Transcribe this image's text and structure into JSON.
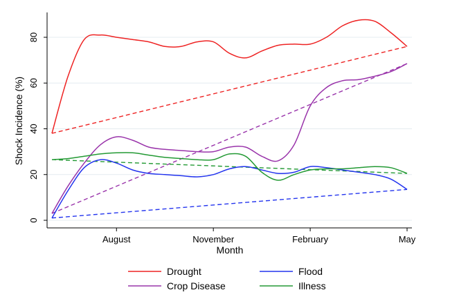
{
  "chart_data": {
    "type": "line",
    "xlabel": "Month",
    "ylabel": "Shock Incidence (%)",
    "x_tick_labels": [
      "August",
      "November",
      "February",
      "May"
    ],
    "x_tick_values": [
      8,
      11,
      14,
      17
    ],
    "y_tick_labels": [
      "0",
      "20",
      "40",
      "60",
      "80"
    ],
    "y_tick_values": [
      0,
      20,
      40,
      60,
      80
    ],
    "xlim": [
      6,
      17
    ],
    "ylim": [
      0,
      90
    ],
    "grid": true,
    "legend_position": "bottom",
    "series": [
      {
        "name": "Drought",
        "color": "#ee2222",
        "x": [
          6,
          6.5,
          7,
          7.5,
          8,
          8.5,
          9,
          9.5,
          10,
          10.5,
          11,
          11.5,
          12,
          12.5,
          13,
          13.5,
          14,
          14.5,
          15,
          15.5,
          16,
          16.5,
          17
        ],
        "values": [
          38,
          63,
          79,
          81,
          80,
          79,
          78,
          76,
          76,
          78,
          78,
          73,
          71,
          74,
          76.5,
          77,
          77,
          80,
          85,
          87.5,
          87,
          82,
          76
        ],
        "trend": [
          38,
          76
        ]
      },
      {
        "name": "Flood",
        "color": "#2233ee",
        "x": [
          6,
          6.5,
          7,
          7.5,
          8,
          8.5,
          9,
          9.5,
          10,
          10.5,
          11,
          11.5,
          12,
          12.5,
          13,
          13.5,
          14,
          14.5,
          15,
          15.5,
          16,
          16.5,
          17
        ],
        "values": [
          1,
          13,
          23,
          26.5,
          25,
          22,
          20.5,
          20,
          19.5,
          19,
          20,
          22.5,
          23.5,
          22,
          20.5,
          21,
          23.5,
          23,
          22,
          21,
          20,
          18,
          13.5
        ],
        "trend": [
          1,
          13.5
        ]
      },
      {
        "name": "Crop Disease",
        "color": "#9933aa",
        "x": [
          6,
          6.5,
          7,
          7.5,
          8,
          8.5,
          9,
          9.5,
          10,
          10.5,
          11,
          11.5,
          12,
          12.5,
          13,
          13.5,
          14,
          14.5,
          15,
          15.5,
          16,
          16.5,
          17
        ],
        "values": [
          3,
          15,
          25,
          33,
          36.5,
          35,
          32,
          31,
          30.5,
          30,
          30,
          32,
          32,
          28,
          26,
          33,
          50,
          58,
          61,
          61.5,
          63,
          65,
          68.5
        ],
        "trend": [
          3,
          68.5
        ]
      },
      {
        "name": "Illness",
        "color": "#229933",
        "x": [
          6,
          6.5,
          7,
          7.5,
          8,
          8.5,
          9,
          9.5,
          10,
          10.5,
          11,
          11.5,
          12,
          12.5,
          13,
          13.5,
          14,
          14.5,
          15,
          15.5,
          16,
          16.5,
          17
        ],
        "values": [
          26.5,
          27,
          28,
          29,
          29.5,
          29.5,
          28.5,
          27.5,
          27,
          26.5,
          26.5,
          29,
          28,
          21,
          17.5,
          20,
          22,
          22.5,
          22.5,
          23,
          23.5,
          23,
          20.5
        ],
        "trend": [
          26.5,
          20.5
        ]
      }
    ]
  }
}
